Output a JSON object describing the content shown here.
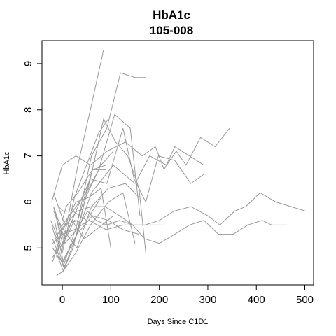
{
  "chart_data": {
    "type": "line",
    "title": "HbA1c",
    "subtitle": "105-008",
    "xlabel": "Days Since C1D1",
    "ylabel": "HbA1c",
    "xlim": [
      -42,
      518
    ],
    "ylim": [
      4.2,
      9.5
    ],
    "xticks": [
      0,
      100,
      200,
      300,
      400,
      500
    ],
    "yticks": [
      5,
      6,
      7,
      8,
      9
    ],
    "grid": false,
    "background_color": "#999999",
    "highlight_color": "#00008b",
    "series": [
      {
        "x": [
          -24,
          0,
          32,
          62,
          85
        ],
        "y": [
          5.6,
          5.0,
          6.8,
          8.2,
          9.3
        ]
      },
      {
        "x": [
          -20,
          2,
          30,
          60,
          92,
          120,
          150,
          172
        ],
        "y": [
          5.2,
          4.6,
          5.5,
          7.0,
          7.6,
          8.8,
          8.7,
          8.7
        ]
      },
      {
        "x": [
          -16,
          2,
          30,
          60,
          105,
          150,
          180,
          215,
          235,
          255,
          285,
          315,
          345
        ],
        "y": [
          5.6,
          4.7,
          5.3,
          6.2,
          6.8,
          6.4,
          7.0,
          6.8,
          7.1,
          6.8,
          7.4,
          7.2,
          7.6
        ]
      },
      {
        "x": [
          -22,
          0,
          28,
          58,
          92,
          130,
          165,
          192,
          210,
          232,
          262,
          292
        ],
        "y": [
          6.0,
          6.8,
          7.0,
          6.8,
          7.1,
          7.3,
          7.0,
          7.2,
          6.7,
          7.2,
          7.0,
          6.8
        ]
      },
      {
        "x": [
          -18,
          5,
          32,
          58,
          92,
          125,
          148,
          172,
          198,
          232,
          265,
          292
        ],
        "y": [
          5.9,
          5.2,
          5.9,
          6.5,
          6.4,
          7.6,
          6.5,
          6.0,
          7.0,
          6.9,
          6.4,
          6.6
        ]
      },
      {
        "x": [
          -20,
          5,
          30,
          62,
          85,
          110,
          135,
          158,
          172
        ],
        "y": [
          5.0,
          4.6,
          5.3,
          6.7,
          7.8,
          7.3,
          7.0,
          6.3,
          4.9
        ]
      },
      {
        "x": [
          -12,
          2,
          22,
          48,
          75,
          108,
          140,
          160
        ],
        "y": [
          4.4,
          4.5,
          5.0,
          6.1,
          6.7,
          7.9,
          7.6,
          5.7
        ]
      },
      {
        "x": [
          -15,
          0,
          25,
          50,
          75,
          95
        ],
        "y": [
          5.3,
          4.9,
          6.1,
          6.8,
          7.5,
          7.8
        ]
      },
      {
        "x": [
          -14,
          5,
          30,
          52,
          70,
          92,
          118,
          145,
          170,
          200,
          230,
          265,
          300,
          325,
          355,
          378,
          408,
          440,
          472,
          502
        ],
        "y": [
          5.7,
          5.1,
          5.4,
          5.8,
          5.6,
          5.5,
          5.6,
          5.5,
          5.5,
          5.6,
          5.8,
          5.9,
          5.7,
          5.5,
          5.8,
          5.9,
          6.2,
          6.0,
          5.9,
          5.8
        ]
      },
      {
        "x": [
          -20,
          0,
          30,
          60,
          88,
          118,
          145,
          170,
          200,
          232,
          262,
          292,
          322,
          352,
          382,
          412,
          432,
          462
        ],
        "y": [
          4.7,
          5.4,
          5.8,
          5.9,
          5.9,
          5.7,
          5.5,
          5.2,
          5.1,
          5.3,
          5.5,
          5.6,
          5.3,
          5.3,
          5.5,
          5.6,
          5.5,
          5.5
        ]
      },
      {
        "x": [
          -18,
          2,
          30,
          60,
          95,
          130,
          158
        ],
        "y": [
          5.8,
          5.4,
          5.0,
          5.9,
          6.3,
          6.4,
          6.1
        ]
      },
      {
        "x": [
          -10,
          5,
          28,
          55,
          80,
          100
        ],
        "y": [
          5.3,
          5.5,
          6.0,
          6.1,
          6.3,
          5.0
        ]
      },
      {
        "x": [
          -20,
          0,
          25,
          55,
          90,
          125,
          160,
          210
        ],
        "y": [
          5.1,
          5.3,
          5.4,
          5.6,
          5.4,
          5.5,
          5.5,
          5.5
        ]
      },
      {
        "x": [
          -22,
          0,
          30,
          62,
          95,
          125,
          158
        ],
        "y": [
          5.5,
          4.7,
          5.3,
          5.7,
          5.6,
          5.4,
          5.3
        ]
      },
      {
        "x": [
          -18,
          5,
          32,
          62,
          90
        ],
        "y": [
          6.2,
          5.5,
          5.6,
          6.7,
          6.8
        ]
      },
      {
        "x": [
          -16,
          2,
          28,
          58,
          95,
          125,
          150
        ],
        "y": [
          5.0,
          4.5,
          4.9,
          5.5,
          6.0,
          6.2,
          5.1
        ]
      },
      {
        "x": [
          -18,
          0,
          20,
          45,
          70,
          105
        ],
        "y": [
          5.9,
          5.1,
          5.6,
          5.2,
          5.4,
          5.7
        ]
      },
      {
        "x": [
          -12,
          0,
          22,
          50,
          80
        ],
        "y": [
          4.8,
          5.5,
          5.8,
          5.6,
          6.1
        ]
      },
      {
        "x": [
          -8,
          2,
          22,
          55,
          80,
          105
        ],
        "y": [
          5.9,
          5.8,
          5.8,
          6.3,
          6.8,
          7.1
        ]
      },
      {
        "x": [
          0,
          8,
          32,
          62,
          90
        ],
        "y": [
          5.6,
          5.9,
          6.2,
          6.7,
          6.7
        ]
      },
      {
        "x": [
          -20,
          2,
          25,
          52,
          75
        ],
        "y": [
          4.8,
          5.1,
          5.6,
          5.5,
          5.5
        ]
      }
    ],
    "highlight_segment": {
      "x": [
        -5,
        0
      ],
      "y": [
        5.8,
        5.8
      ]
    }
  }
}
